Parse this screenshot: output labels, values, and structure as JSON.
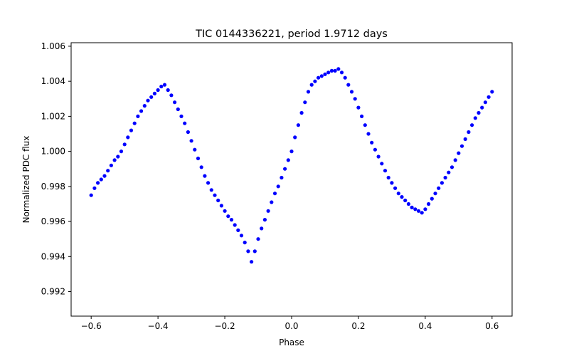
{
  "chart_data": {
    "type": "scatter",
    "title": "TIC 0144336221, period 1.9712 days",
    "xlabel": "Phase",
    "ylabel": "Normalized PDC flux",
    "xlim": [
      -0.66,
      0.66
    ],
    "ylim": [
      0.9906,
      1.0062
    ],
    "xticks": [
      -0.6,
      -0.4,
      -0.2,
      0.0,
      0.2,
      0.4,
      0.6
    ],
    "xtick_labels": [
      "−0.6",
      "−0.4",
      "−0.2",
      "0.0",
      "0.2",
      "0.4",
      "0.6"
    ],
    "yticks": [
      0.992,
      0.994,
      0.996,
      0.998,
      1.0,
      1.002,
      1.004,
      1.006
    ],
    "ytick_labels": [
      "0.992",
      "0.994",
      "0.996",
      "0.998",
      "1.000",
      "1.002",
      "1.004",
      "1.006"
    ],
    "grid": false,
    "marker_color": "#0000ff",
    "series": [
      {
        "x": [
          -0.6,
          -0.59,
          -0.58,
          -0.57,
          -0.56,
          -0.55,
          -0.54,
          -0.53,
          -0.52,
          -0.51,
          -0.5,
          -0.49,
          -0.48,
          -0.47,
          -0.46,
          -0.45,
          -0.44,
          -0.43,
          -0.42,
          -0.41,
          -0.4,
          -0.39,
          -0.38,
          -0.37,
          -0.36,
          -0.35,
          -0.34,
          -0.33,
          -0.32,
          -0.31,
          -0.3,
          -0.29,
          -0.28,
          -0.27,
          -0.26,
          -0.25,
          -0.24,
          -0.23,
          -0.22,
          -0.21,
          -0.2,
          -0.19,
          -0.18,
          -0.17,
          -0.16,
          -0.15,
          -0.14,
          -0.13,
          -0.12,
          -0.11,
          -0.1,
          -0.09,
          -0.08,
          -0.07,
          -0.06,
          -0.05,
          -0.04,
          -0.03,
          -0.02,
          -0.01,
          0.0,
          0.01,
          0.02,
          0.03,
          0.04,
          0.05,
          0.06,
          0.07,
          0.08,
          0.09,
          0.1,
          0.11,
          0.12,
          0.13,
          0.14,
          0.15,
          0.16,
          0.17,
          0.18,
          0.19,
          0.2,
          0.21,
          0.22,
          0.23,
          0.24,
          0.25,
          0.26,
          0.27,
          0.28,
          0.29,
          0.3,
          0.31,
          0.32,
          0.33,
          0.34,
          0.35,
          0.36,
          0.37,
          0.38,
          0.39,
          0.4,
          0.41,
          0.42,
          0.43,
          0.44,
          0.45,
          0.46,
          0.47,
          0.48,
          0.49,
          0.5,
          0.51,
          0.52,
          0.53,
          0.54,
          0.55,
          0.56,
          0.57,
          0.58,
          0.59,
          0.6
        ],
        "y": [
          0.9975,
          0.9979,
          0.9982,
          0.9984,
          0.9986,
          0.9989,
          0.9992,
          0.9995,
          0.9997,
          1.0,
          1.0004,
          1.0008,
          1.0012,
          1.0016,
          1.002,
          1.0023,
          1.0026,
          1.0029,
          1.0031,
          1.0033,
          1.0035,
          1.0037,
          1.0038,
          1.0035,
          1.0032,
          1.0028,
          1.0024,
          1.002,
          1.0016,
          1.0011,
          1.0006,
          1.0001,
          0.9996,
          0.9991,
          0.9986,
          0.9982,
          0.9978,
          0.9975,
          0.9972,
          0.9969,
          0.9966,
          0.9963,
          0.9961,
          0.9958,
          0.9955,
          0.9952,
          0.9948,
          0.9943,
          0.9937,
          0.9943,
          0.995,
          0.9956,
          0.9961,
          0.9966,
          0.9971,
          0.9976,
          0.998,
          0.9985,
          0.999,
          0.9995,
          1.0,
          1.0008,
          1.0015,
          1.0022,
          1.0028,
          1.0034,
          1.0038,
          1.004,
          1.0042,
          1.0043,
          1.0044,
          1.0045,
          1.0046,
          1.0046,
          1.0047,
          1.0045,
          1.0042,
          1.0038,
          1.0034,
          1.003,
          1.0025,
          1.002,
          1.0015,
          1.001,
          1.0005,
          1.0001,
          0.9997,
          0.9993,
          0.9989,
          0.9985,
          0.9982,
          0.9979,
          0.9976,
          0.9974,
          0.9972,
          0.997,
          0.9968,
          0.9967,
          0.9966,
          0.9965,
          0.9967,
          0.997,
          0.9973,
          0.9976,
          0.9979,
          0.9982,
          0.9985,
          0.9988,
          0.9991,
          0.9995,
          0.9999,
          1.0003,
          1.0007,
          1.0011,
          1.0015,
          1.0019,
          1.0022,
          1.0025,
          1.0028,
          1.0031,
          1.0034
        ]
      }
    ]
  }
}
